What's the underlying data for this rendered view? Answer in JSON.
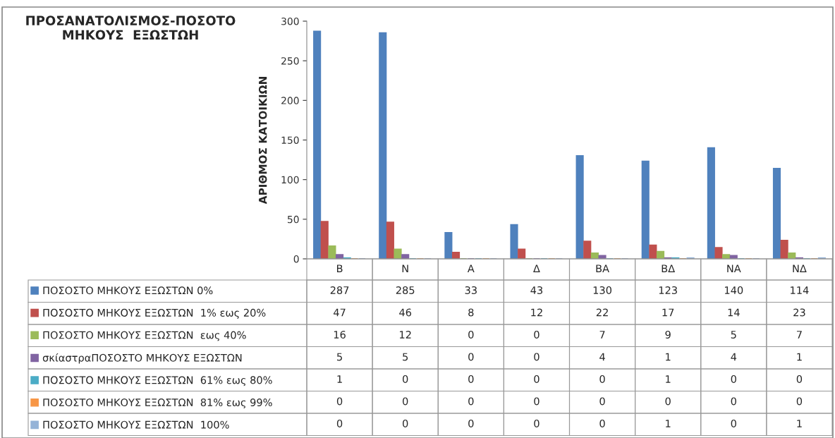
{
  "chart_data": {
    "type": "bar",
    "title": "ΠΡΟΣΑΝΑΤΟΛΙΣΜΟΣ-ΠΟΣΟΤΟ\nΜΗΚΟΥΣ  ΕΞΩΣΤΩΗ",
    "ylabel": "ΑΡΙΘΜΟΣ ΚΑΤΟΙΚΙΩΝ",
    "categories": [
      "B",
      "N",
      "A",
      "Δ",
      "BA",
      "BΔ",
      "NA",
      "NΔ"
    ],
    "series": [
      {
        "name": "ΠΟΣΟΣΤΟ ΜΗΚΟΥΣ ΕΞΩΣΤΩΝ 0%",
        "color": "#4f81bd",
        "values": [
          287,
          285,
          33,
          43,
          130,
          123,
          140,
          114
        ]
      },
      {
        "name": "ΠΟΣΟΣΤΟ ΜΗΚΟΥΣ ΕΞΩΣΤΩΝ  1% εως 20%",
        "color": "#c0504d",
        "values": [
          47,
          46,
          8,
          12,
          22,
          17,
          14,
          23
        ]
      },
      {
        "name": "ΠΟΣΟΣΤΟ ΜΗΚΟΥΣ ΕΞΩΣΤΩΝ  εως 40%",
        "color": "#9bbb59",
        "values": [
          16,
          12,
          0,
          0,
          7,
          9,
          5,
          7
        ]
      },
      {
        "name": "σκίαστραΠΟΣΟΣΤΟ ΜΗΚΟΥΣ ΕΞΩΣΤΩΝ",
        "color": "#8064a2",
        "values": [
          5,
          5,
          0,
          0,
          4,
          1,
          4,
          1
        ]
      },
      {
        "name": "ΠΟΣΟΣΤΟ ΜΗΚΟΥΣ ΕΞΩΣΤΩΝ  61% εως 80%",
        "color": "#4bacc6",
        "values": [
          1,
          0,
          0,
          0,
          0,
          1,
          0,
          0
        ]
      },
      {
        "name": "ΠΟΣΟΣΤΟ ΜΗΚΟΥΣ ΕΞΩΣΤΩΝ  81% εως 99%",
        "color": "#f79646",
        "values": [
          0,
          0,
          0,
          0,
          0,
          0,
          0,
          0
        ]
      },
      {
        "name": "ΠΟΣΟΣΤΟ ΜΗΚΟΥΣ ΕΞΩΣΤΩΝ  100%",
        "color": "#95b3d7",
        "values": [
          0,
          0,
          0,
          0,
          0,
          1,
          0,
          1
        ]
      }
    ],
    "ylim": [
      0,
      300
    ],
    "yticks": [
      0,
      50,
      100,
      150,
      200,
      250,
      300
    ],
    "grid": false,
    "legend": "bottom",
    "data_labels": true
  }
}
